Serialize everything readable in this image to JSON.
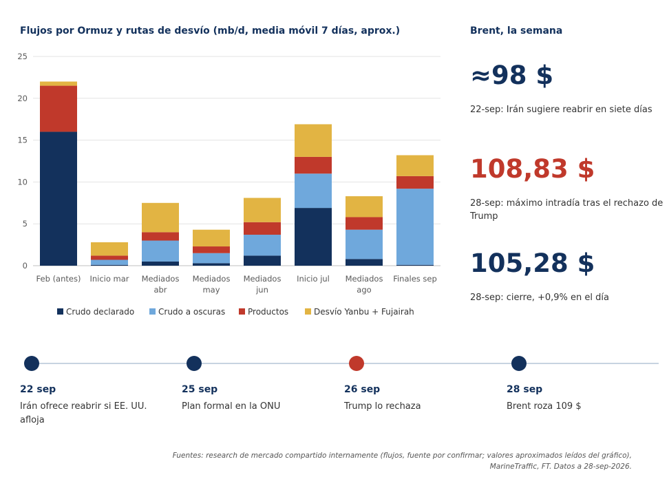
{
  "chart_data": {
    "type": "bar",
    "stacked": true,
    "title": "Flujos por Ormuz y rutas de desvío (mb/d, media móvil 7 días, aprox.)",
    "categories": [
      [
        "Feb (antes)"
      ],
      [
        "Inicio mar"
      ],
      [
        "Mediados",
        "abr"
      ],
      [
        "Mediados",
        "may"
      ],
      [
        "Mediados",
        "jun"
      ],
      [
        "Inicio jul"
      ],
      [
        "Mediados",
        "ago"
      ],
      [
        "Finales sep"
      ]
    ],
    "series": [
      {
        "name": "Crudo declarado",
        "color": "#13315c",
        "values": [
          16.0,
          0.1,
          0.5,
          0.3,
          1.2,
          6.9,
          0.8,
          0.1
        ]
      },
      {
        "name": "Crudo a oscuras",
        "color": "#6fa8dc",
        "values": [
          0.0,
          0.6,
          2.5,
          1.2,
          2.5,
          4.1,
          3.5,
          9.1
        ]
      },
      {
        "name": "Productos",
        "color": "#c0392b",
        "values": [
          5.5,
          0.5,
          1.0,
          0.8,
          1.5,
          2.0,
          1.5,
          1.5
        ]
      },
      {
        "name": "Desvío Yanbu + Fujairah",
        "color": "#e2b443",
        "values": [
          0.5,
          1.6,
          3.5,
          2.0,
          2.9,
          3.9,
          2.5,
          2.5
        ]
      }
    ],
    "ylim": [
      0,
      25
    ],
    "yticks": [
      0,
      5,
      10,
      15,
      20,
      25
    ],
    "grid": true,
    "legend_position": "bottom"
  },
  "brent": {
    "title": "Brent, la semana",
    "kpis": [
      {
        "value": "≈98 $",
        "note": "22-sep: Irán sugiere reabrir en siete días",
        "color": "#13315c"
      },
      {
        "value": "108,83 $",
        "note": "28-sep: máximo intradía tras el rechazo de Trump",
        "color": "#c0392b"
      },
      {
        "value": "105,28 $",
        "note": "28-sep: cierre, +0,9% en el día",
        "color": "#13315c"
      }
    ]
  },
  "timeline": [
    {
      "date": "22 sep",
      "text": "Irán ofrece reabrir si EE. UU. afloja",
      "color": "#13315c"
    },
    {
      "date": "25 sep",
      "text": "Plan formal en la ONU",
      "color": "#13315c"
    },
    {
      "date": "26 sep",
      "text": "Trump lo rechaza",
      "color": "#c0392b"
    },
    {
      "date": "28 sep",
      "text": "Brent roza 109 $",
      "color": "#13315c"
    }
  ],
  "footer": {
    "line1": "Fuentes: research de mercado compartido internamente (flujos, fuente por confirmar; valores aproximados leídos del gráfico),",
    "line2": "MarineTraffic, FT. Datos a 28-sep-2026."
  }
}
